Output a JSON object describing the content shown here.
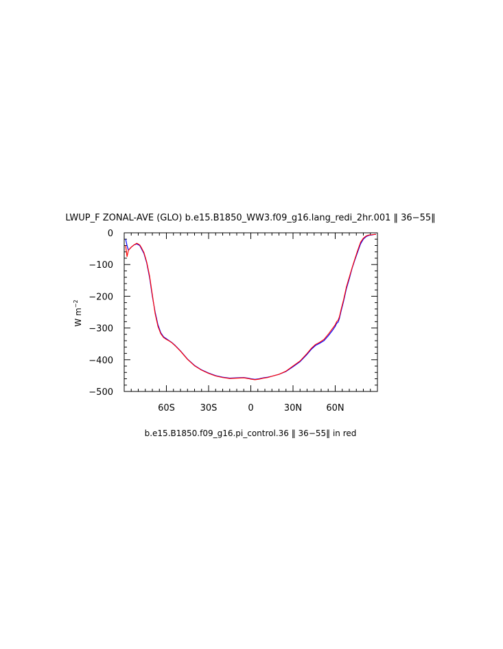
{
  "chart_data": {
    "type": "line",
    "title": "LWUP_F ZONAL-AVE (GLO) b.e15.B1850_WW3.f09_g16.lang_redi_2hr.001 ‖ 36−55‖",
    "subtitle": "b.e15.B1850.f09_g16.pi_control.36 ‖ 36−55‖  in red",
    "ylabel": "W m",
    "ylabel_exponent": "−2",
    "xlim": [
      -90,
      90
    ],
    "ylim": [
      -500,
      0
    ],
    "x_ticks": [
      {
        "value": -60,
        "label": "60S"
      },
      {
        "value": -30,
        "label": "30S"
      },
      {
        "value": 0,
        "label": "0"
      },
      {
        "value": 30,
        "label": "30N"
      },
      {
        "value": 60,
        "label": "60N"
      }
    ],
    "y_ticks": [
      {
        "value": 0,
        "label": "0"
      },
      {
        "value": -100,
        "label": "−100"
      },
      {
        "value": -200,
        "label": "−200"
      },
      {
        "value": -300,
        "label": "−300"
      },
      {
        "value": -400,
        "label": "−400"
      },
      {
        "value": -500,
        "label": "−500"
      }
    ],
    "series": [
      {
        "color": "#0000ff",
        "x": [
          -89,
          -88,
          -87,
          -85,
          -83,
          -81,
          -79,
          -78,
          -76,
          -74,
          -72,
          -70,
          -68,
          -66,
          -64,
          -62,
          -60,
          -58,
          -56,
          -54,
          -50,
          -45,
          -40,
          -35,
          -30,
          -25,
          -20,
          -15,
          -10,
          -5,
          -2,
          0,
          3,
          6,
          9,
          12,
          15,
          20,
          25,
          30,
          35,
          40,
          43,
          46,
          49,
          52,
          55,
          58,
          60,
          61,
          62,
          63,
          64,
          66,
          68,
          70,
          72,
          74,
          76,
          78,
          80,
          82,
          84,
          86,
          88,
          89
        ],
        "y": [
          -20,
          -40,
          -55,
          -45,
          -38,
          -35,
          -40,
          -48,
          -65,
          -95,
          -140,
          -200,
          -250,
          -290,
          -315,
          -328,
          -334,
          -340,
          -346,
          -354,
          -372,
          -398,
          -418,
          -432,
          -442,
          -450,
          -455,
          -458,
          -457,
          -456,
          -458,
          -460,
          -462,
          -460,
          -457,
          -455,
          -452,
          -446,
          -437,
          -422,
          -406,
          -383,
          -367,
          -355,
          -348,
          -340,
          -325,
          -308,
          -295,
          -285,
          -282,
          -270,
          -250,
          -215,
          -175,
          -145,
          -112,
          -85,
          -60,
          -35,
          -20,
          -12,
          -8,
          -7,
          -5,
          -5
        ]
      },
      {
        "color": "#ff0000",
        "x": [
          -89,
          -88,
          -87,
          -85,
          -83,
          -81,
          -79,
          -78,
          -76,
          -74,
          -72,
          -70,
          -68,
          -66,
          -64,
          -62,
          -60,
          -58,
          -56,
          -54,
          -50,
          -45,
          -40,
          -35,
          -30,
          -25,
          -20,
          -15,
          -10,
          -5,
          -2,
          0,
          3,
          6,
          9,
          12,
          15,
          20,
          25,
          30,
          35,
          40,
          43,
          46,
          49,
          52,
          55,
          58,
          60,
          61,
          62,
          63,
          64,
          66,
          68,
          70,
          72,
          74,
          76,
          78,
          80,
          82,
          84,
          86,
          88,
          89
        ],
        "y": [
          -40,
          -75,
          -55,
          -45,
          -38,
          -33,
          -38,
          -45,
          -62,
          -92,
          -135,
          -195,
          -255,
          -295,
          -318,
          -330,
          -336,
          -341,
          -347,
          -355,
          -373,
          -399,
          -419,
          -433,
          -443,
          -451,
          -456,
          -459,
          -458,
          -457,
          -459,
          -461,
          -463,
          -461,
          -458,
          -456,
          -452,
          -446,
          -436,
          -420,
          -404,
          -380,
          -364,
          -352,
          -345,
          -336,
          -320,
          -302,
          -290,
          -280,
          -276,
          -265,
          -245,
          -210,
          -170,
          -140,
          -110,
          -82,
          -55,
          -30,
          -17,
          -10,
          -7,
          -6,
          -5,
          -5
        ]
      }
    ],
    "grid": false,
    "legend": "none"
  }
}
